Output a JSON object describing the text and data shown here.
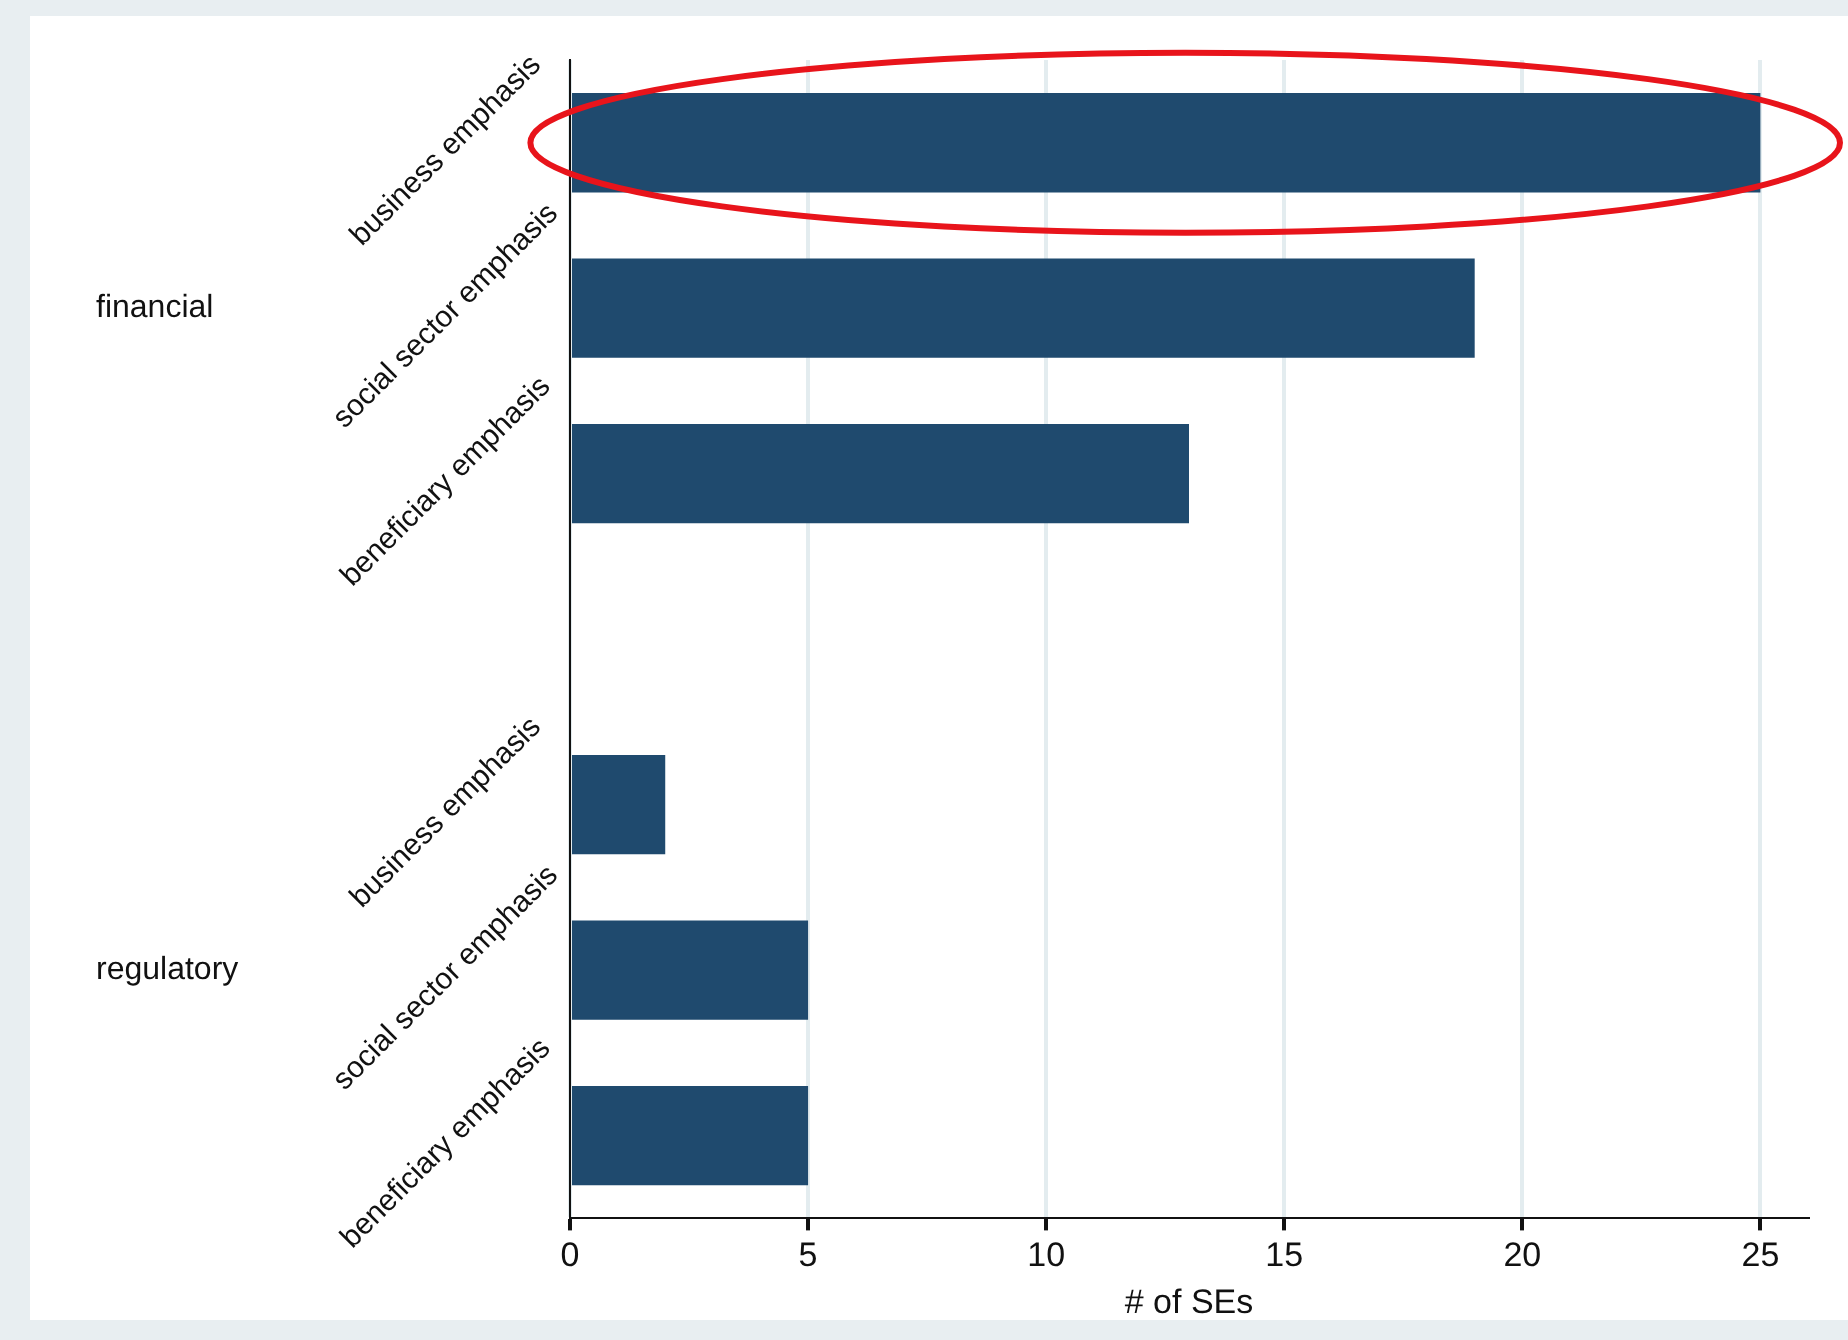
{
  "chart_data": {
    "type": "bar",
    "orientation": "horizontal",
    "categories": [
      "business emphasis",
      "social sector emphasis",
      "beneficiary emphasis",
      null,
      "business emphasis",
      "social sector emphasis",
      "beneficiary emphasis"
    ],
    "values": [
      25,
      19,
      13,
      null,
      2,
      5,
      5
    ],
    "color": "#1f4a6e",
    "xlabel": "# of SEs",
    "xlim": [
      0,
      26
    ],
    "xticks": [
      0,
      5,
      10,
      15,
      20,
      25
    ],
    "grid": "x",
    "legend": false,
    "annotations": [
      "financial",
      "regulatory"
    ]
  }
}
